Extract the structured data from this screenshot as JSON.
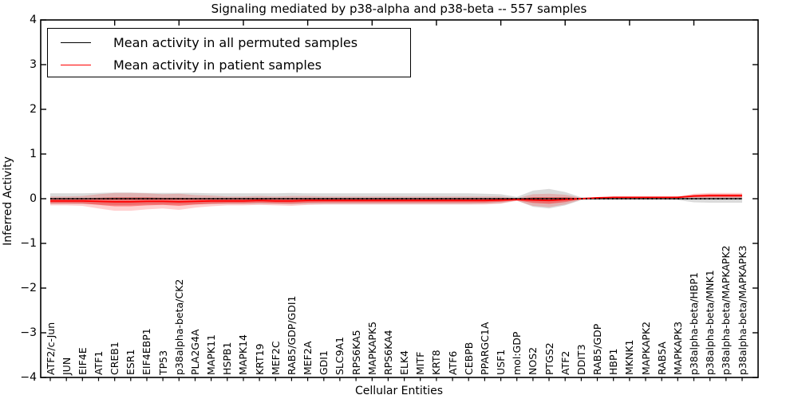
{
  "chart_data": {
    "type": "line",
    "title": "Signaling mediated by p38-alpha and p38-beta -- 557 samples",
    "xlabel": "Cellular Entities",
    "ylabel": "Inferred Activity",
    "ylim": [
      -4,
      4
    ],
    "yticks": [
      4,
      3,
      2,
      1,
      0,
      -1,
      -2,
      -3,
      -4
    ],
    "yticklabels": [
      "4",
      "3",
      "2",
      "1",
      "0",
      "−1",
      "−2",
      "−3",
      "−4"
    ],
    "grid": false,
    "legend_position": "upper left",
    "categories": [
      "ATF2/c-Jun",
      "JUN",
      "EIF4E",
      "ATF1",
      "CREB1",
      "ESR1",
      "EIF4EBP1",
      "TP53",
      "p38alpha-beta/CK2",
      "PLA2G4A",
      "MAPK11",
      "HSPB1",
      "MAPK14",
      "KRT19",
      "MEF2C",
      "RAB5/GDP/GDI1",
      "MEF2A",
      "GDI1",
      "SLC9A1",
      "RPS6KA5",
      "MAPKAPK5",
      "RPS6KA4",
      "ELK4",
      "MITF",
      "KRT8",
      "ATF6",
      "CEBPB",
      "PPARGC1A",
      "USF1",
      "mol:GDP",
      "NOS2",
      "PTGS2",
      "ATF2",
      "DDIT3",
      "RAB5/GDP",
      "HBP1",
      "MKNK1",
      "MAPKAPK2",
      "RAB5A",
      "MAPKAPK3",
      "p38alpha-beta/HBP1",
      "p38alpha-beta/MNK1",
      "p38alpha-beta/MAPKAPK2",
      "p38alpha-beta/MAPKAPK3"
    ],
    "series": [
      {
        "name": "Mean activity in all permuted samples",
        "color": "#000000",
        "band_color": "#8c8c8c",
        "values": [
          0,
          0,
          0,
          0,
          0,
          0,
          0,
          0,
          0,
          0,
          0,
          0,
          0,
          0,
          0,
          0,
          0,
          0,
          0,
          0,
          0,
          0,
          0,
          0,
          0,
          0,
          0,
          0,
          0,
          0,
          0,
          0,
          0,
          0,
          0,
          0,
          0,
          0,
          0,
          0,
          0,
          0,
          0,
          0
        ],
        "band": [
          0.12,
          0.12,
          0.12,
          0.13,
          0.14,
          0.14,
          0.13,
          0.13,
          0.13,
          0.13,
          0.12,
          0.12,
          0.12,
          0.12,
          0.12,
          0.13,
          0.12,
          0.12,
          0.12,
          0.12,
          0.12,
          0.12,
          0.12,
          0.12,
          0.12,
          0.12,
          0.12,
          0.11,
          0.1,
          0.04,
          0.18,
          0.22,
          0.15,
          0.03,
          0.02,
          0.02,
          0.02,
          0.02,
          0.02,
          0.03,
          0.08,
          0.09,
          0.09,
          0.09
        ]
      },
      {
        "name": "Mean activity in patient samples",
        "color": "#ff0000",
        "band_color": "#ff0000",
        "values": [
          -0.05,
          -0.05,
          -0.05,
          -0.06,
          -0.07,
          -0.07,
          -0.06,
          -0.06,
          -0.07,
          -0.06,
          -0.05,
          -0.05,
          -0.05,
          -0.04,
          -0.05,
          -0.05,
          -0.04,
          -0.04,
          -0.04,
          -0.04,
          -0.04,
          -0.04,
          -0.04,
          -0.04,
          -0.04,
          -0.04,
          -0.04,
          -0.04,
          -0.03,
          -0.02,
          -0.03,
          -0.04,
          -0.02,
          0,
          0.02,
          0.03,
          0.03,
          0.03,
          0.03,
          0.03,
          0.06,
          0.07,
          0.07,
          0.07
        ],
        "band": [
          0.1,
          0.1,
          0.11,
          0.16,
          0.2,
          0.2,
          0.18,
          0.16,
          0.18,
          0.14,
          0.12,
          0.1,
          0.1,
          0.1,
          0.1,
          0.11,
          0.1,
          0.09,
          0.09,
          0.09,
          0.09,
          0.09,
          0.09,
          0.09,
          0.09,
          0.09,
          0.09,
          0.09,
          0.08,
          0.03,
          0.13,
          0.15,
          0.11,
          0.02,
          0.01,
          0.01,
          0.01,
          0.01,
          0.01,
          0.02,
          0.05,
          0.06,
          0.06,
          0.06
        ]
      }
    ]
  }
}
